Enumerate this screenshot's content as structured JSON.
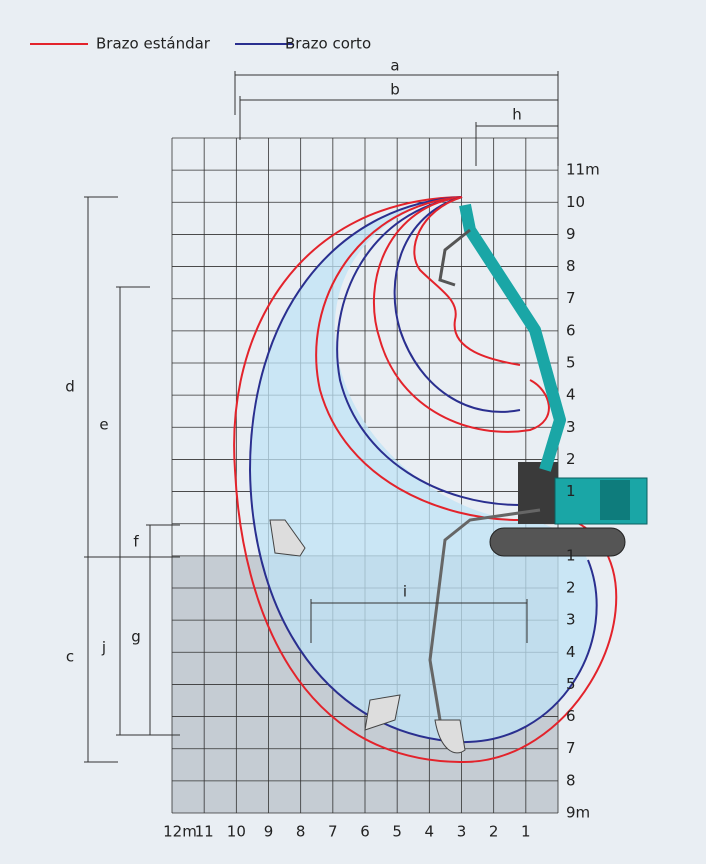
{
  "legend": [
    {
      "name": "Brazo estándar",
      "color": "#e3232b"
    },
    {
      "name": "Brazo corto",
      "color": "#2a2f8f"
    }
  ],
  "x_labels": [
    "12m",
    "11",
    "10",
    "9",
    "8",
    "7",
    "6",
    "5",
    "4",
    "3",
    "2",
    "1"
  ],
  "y_labels_above": [
    "11m",
    "10",
    "9",
    "8",
    "7",
    "6",
    "5",
    "4",
    "3",
    "2",
    "1"
  ],
  "y_labels_below": [
    "1",
    "2",
    "3",
    "4",
    "5",
    "6",
    "7",
    "8",
    "9m"
  ],
  "dimensions": {
    "a": "a",
    "b": "b",
    "h": "h",
    "d": "d",
    "e": "e",
    "f": "f",
    "c": "c",
    "j": "j",
    "g": "g",
    "i": "i"
  }
}
